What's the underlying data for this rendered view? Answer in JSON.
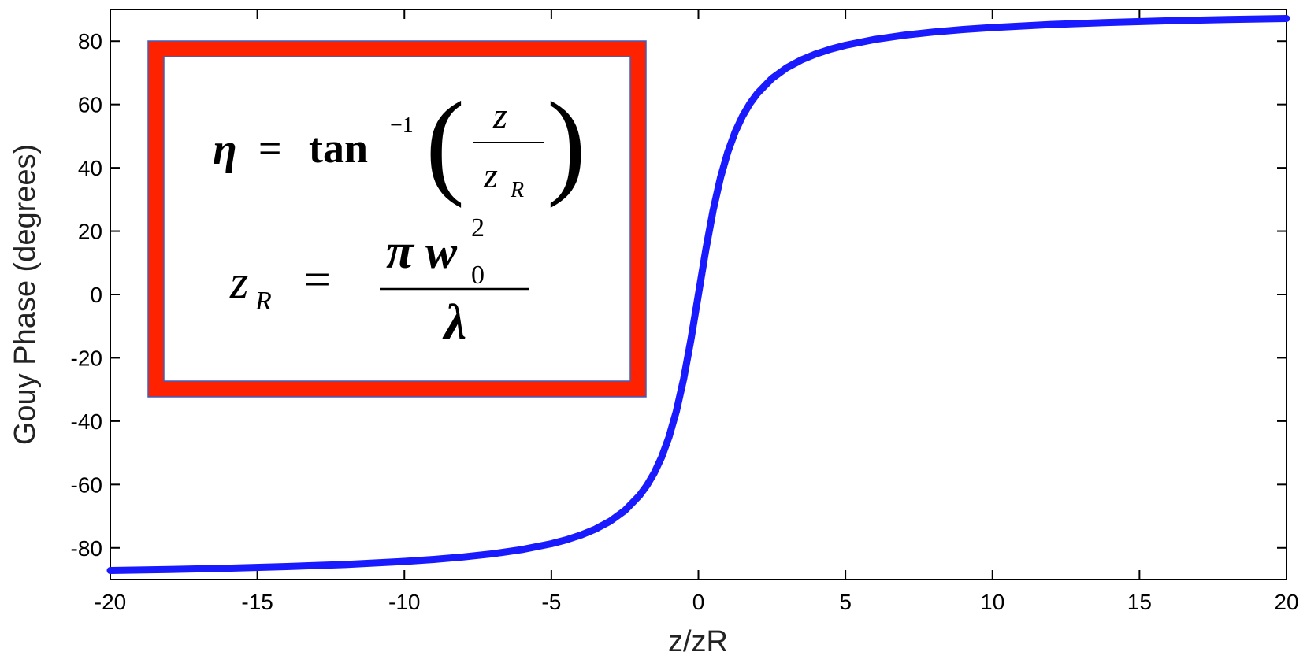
{
  "chart_data": {
    "type": "line",
    "xlabel": "z/zR",
    "ylabel": "Gouy Phase (degrees)",
    "xlim": [
      -20,
      20
    ],
    "ylim": [
      -90,
      90
    ],
    "xticks": [
      -20,
      -15,
      -10,
      -5,
      0,
      5,
      10,
      15,
      20
    ],
    "yticks": [
      -80,
      -60,
      -40,
      -20,
      0,
      20,
      40,
      60,
      80
    ],
    "xtick_labels": [
      "-20",
      "-15",
      "-10",
      "-5",
      "0",
      "5",
      "10",
      "15",
      "20"
    ],
    "ytick_labels": [
      "-80",
      "-60",
      "-40",
      "-20",
      "0",
      "20",
      "40",
      "60",
      "80"
    ],
    "grid": false,
    "series": [
      {
        "color": "#1a1aff",
        "x": [
          -20,
          -18,
          -16,
          -14,
          -12,
          -10,
          -9,
          -8,
          -7,
          -6,
          -5,
          -4.5,
          -4,
          -3.5,
          -3,
          -2.5,
          -2,
          -1.75,
          -1.5,
          -1.25,
          -1,
          -0.75,
          -0.5,
          -0.25,
          0,
          0.25,
          0.5,
          0.75,
          1,
          1.25,
          1.5,
          1.75,
          2,
          2.5,
          3,
          3.5,
          4,
          4.5,
          5,
          6,
          7,
          8,
          9,
          10,
          12,
          14,
          16,
          18,
          20
        ],
        "y": [
          -87.14,
          -86.82,
          -86.42,
          -85.91,
          -85.24,
          -84.29,
          -83.66,
          -82.87,
          -81.87,
          -80.54,
          -78.69,
          -77.47,
          -75.96,
          -74.05,
          -71.57,
          -68.2,
          -63.43,
          -60.26,
          -56.31,
          -51.34,
          -45.0,
          -36.87,
          -26.57,
          -14.04,
          0,
          14.04,
          26.57,
          36.87,
          45.0,
          51.34,
          56.31,
          60.26,
          63.43,
          68.2,
          71.57,
          74.05,
          75.96,
          77.47,
          78.69,
          80.54,
          81.87,
          82.87,
          83.66,
          84.29,
          85.24,
          85.91,
          86.42,
          86.82,
          87.14
        ]
      }
    ]
  },
  "equation_box": {
    "border_color": "#ff2200",
    "eq1": {
      "lhs": "η",
      "eq": "=",
      "fn": "tan",
      "sup": "−1",
      "lparen": "(",
      "rparen": ")",
      "num": "z",
      "den": "z",
      "den_sub": "R"
    },
    "eq2": {
      "lhs": "z",
      "lhs_sub": "R",
      "eq": "=",
      "num_pi": "π",
      "num_w": "w",
      "num_sup": "2",
      "num_sub": "0",
      "den": "λ"
    }
  }
}
